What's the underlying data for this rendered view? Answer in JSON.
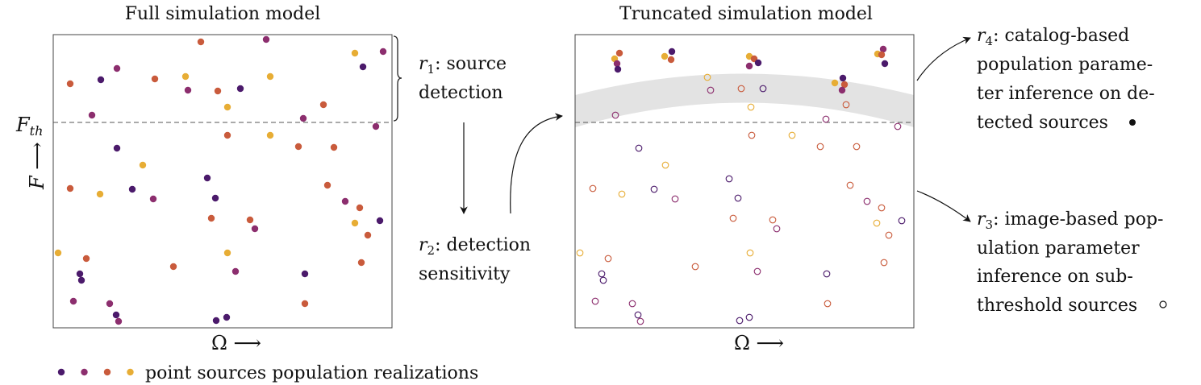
{
  "left_panel": {
    "title": "Full simulation model",
    "x_axis": "Ω ⟶",
    "y_axis_symbol": "F",
    "y_axis_arrow": " ⟶",
    "threshold_label_base": "F",
    "threshold_label_sub": "th"
  },
  "right_panel": {
    "title": "Truncated simulation model",
    "x_axis": "Ω ⟶"
  },
  "labels": {
    "r1": {
      "sym": "r",
      "sub": "1",
      "lines": [
        ": source",
        "detection"
      ]
    },
    "r2": {
      "sym": "r",
      "sub": "2",
      "lines": [
        ": detection",
        "sensitivity"
      ]
    },
    "r3": {
      "sym": "r",
      "sub": "3",
      "lines": [
        ": image-based pop-",
        "ulation parameter",
        "inference on sub-",
        "threshold sources"
      ]
    },
    "r4": {
      "sym": "r",
      "sub": "4",
      "lines": [
        ": catalog-based",
        "population parame-",
        "ter inference on de-",
        "tected sources"
      ]
    }
  },
  "legend": {
    "text": "point sources population realizations",
    "colors": [
      "#4b1a6b",
      "#8c2e6e",
      "#c95b3c",
      "#e7ad35"
    ]
  },
  "colors": {
    "purple": "#4b1a6b",
    "magenta": "#8c2e6e",
    "orange": "#c95b3c",
    "yellow": "#e7ad35",
    "band": "#e3e3e3"
  },
  "points_left": [
    {
      "x": 87,
      "y": 104,
      "c": "orange"
    },
    {
      "x": 125,
      "y": 99,
      "c": "purple"
    },
    {
      "x": 145,
      "y": 85,
      "c": "magenta"
    },
    {
      "x": 192,
      "y": 98,
      "c": "orange"
    },
    {
      "x": 230,
      "y": 95,
      "c": "yellow"
    },
    {
      "x": 233,
      "y": 112,
      "c": "magenta"
    },
    {
      "x": 249,
      "y": 52,
      "c": "orange"
    },
    {
      "x": 270,
      "y": 113,
      "c": "orange"
    },
    {
      "x": 282,
      "y": 133,
      "c": "yellow"
    },
    {
      "x": 298,
      "y": 110,
      "c": "purple"
    },
    {
      "x": 330,
      "y": 49,
      "c": "magenta"
    },
    {
      "x": 335,
      "y": 95,
      "c": "yellow"
    },
    {
      "x": 376,
      "y": 147,
      "c": "magenta"
    },
    {
      "x": 401,
      "y": 130,
      "c": "orange"
    },
    {
      "x": 440,
      "y": 66,
      "c": "yellow"
    },
    {
      "x": 450,
      "y": 83,
      "c": "purple"
    },
    {
      "x": 475,
      "y": 64,
      "c": "magenta"
    },
    {
      "x": 466,
      "y": 157,
      "c": "magenta"
    },
    {
      "x": 114,
      "y": 143,
      "c": "magenta"
    },
    {
      "x": 145,
      "y": 184,
      "c": "purple"
    },
    {
      "x": 177,
      "y": 205,
      "c": "yellow"
    },
    {
      "x": 87,
      "y": 234,
      "c": "orange"
    },
    {
      "x": 124,
      "y": 241,
      "c": "yellow"
    },
    {
      "x": 164,
      "y": 235,
      "c": "purple"
    },
    {
      "x": 190,
      "y": 247,
      "c": "magenta"
    },
    {
      "x": 257,
      "y": 221,
      "c": "purple"
    },
    {
      "x": 267,
      "y": 246,
      "c": "purple"
    },
    {
      "x": 282,
      "y": 168,
      "c": "orange"
    },
    {
      "x": 335,
      "y": 168,
      "c": "yellow"
    },
    {
      "x": 370,
      "y": 182,
      "c": "orange"
    },
    {
      "x": 414,
      "y": 183,
      "c": "orange"
    },
    {
      "x": 406,
      "y": 230,
      "c": "orange"
    },
    {
      "x": 428,
      "y": 250,
      "c": "magenta"
    },
    {
      "x": 446,
      "y": 258,
      "c": "orange"
    },
    {
      "x": 440,
      "y": 277,
      "c": "yellow"
    },
    {
      "x": 471,
      "y": 274,
      "c": "purple"
    },
    {
      "x": 456,
      "y": 292,
      "c": "orange"
    },
    {
      "x": 262,
      "y": 271,
      "c": "orange"
    },
    {
      "x": 310,
      "y": 273,
      "c": "orange"
    },
    {
      "x": 316,
      "y": 284,
      "c": "magenta"
    },
    {
      "x": 72,
      "y": 314,
      "c": "yellow"
    },
    {
      "x": 107,
      "y": 321,
      "c": "orange"
    },
    {
      "x": 99,
      "y": 340,
      "c": "purple"
    },
    {
      "x": 101,
      "y": 348,
      "c": "purple"
    },
    {
      "x": 215,
      "y": 331,
      "c": "orange"
    },
    {
      "x": 282,
      "y": 314,
      "c": "yellow"
    },
    {
      "x": 292,
      "y": 337,
      "c": "magenta"
    },
    {
      "x": 378,
      "y": 340,
      "c": "purple"
    },
    {
      "x": 448,
      "y": 326,
      "c": "orange"
    },
    {
      "x": 91,
      "y": 374,
      "c": "magenta"
    },
    {
      "x": 136,
      "y": 377,
      "c": "magenta"
    },
    {
      "x": 144,
      "y": 391,
      "c": "purple"
    },
    {
      "x": 147,
      "y": 399,
      "c": "magenta"
    },
    {
      "x": 268,
      "y": 398,
      "c": "purple"
    },
    {
      "x": 281,
      "y": 394,
      "c": "purple"
    },
    {
      "x": 378,
      "y": 377,
      "c": "orange"
    }
  ],
  "points_right_detected": [
    {
      "x": 762,
      "y": 73,
      "c": "yellow"
    },
    {
      "x": 768,
      "y": 66,
      "c": "orange"
    },
    {
      "x": 765,
      "y": 79,
      "c": "magenta"
    },
    {
      "x": 766,
      "y": 86,
      "c": "purple"
    },
    {
      "x": 824,
      "y": 70,
      "c": "yellow"
    },
    {
      "x": 833,
      "y": 64,
      "c": "purple"
    },
    {
      "x": 832,
      "y": 74,
      "c": "orange"
    },
    {
      "x": 929,
      "y": 70,
      "c": "yellow"
    },
    {
      "x": 935,
      "y": 73,
      "c": "orange"
    },
    {
      "x": 940,
      "y": 78,
      "c": "purple"
    },
    {
      "x": 929,
      "y": 82,
      "c": "magenta"
    },
    {
      "x": 1088,
      "y": 67,
      "c": "yellow"
    },
    {
      "x": 1095,
      "y": 61,
      "c": "magenta"
    },
    {
      "x": 1093,
      "y": 68,
      "c": "orange"
    },
    {
      "x": 1097,
      "y": 79,
      "c": "purple"
    },
    {
      "x": 1045,
      "y": 97,
      "c": "purple"
    },
    {
      "x": 1035,
      "y": 103,
      "c": "yellow"
    },
    {
      "x": 1047,
      "y": 105,
      "c": "orange"
    },
    {
      "x": 1044,
      "y": 112,
      "c": "magenta"
    }
  ],
  "points_right_sub": [
    {
      "x": 877,
      "y": 96,
      "c": "yellow"
    },
    {
      "x": 881,
      "y": 112,
      "c": "magenta"
    },
    {
      "x": 919,
      "y": 110,
      "c": "orange"
    },
    {
      "x": 946,
      "y": 110,
      "c": "purple"
    },
    {
      "x": 931,
      "y": 133,
      "c": "yellow"
    },
    {
      "x": 1049,
      "y": 130,
      "c": "orange"
    },
    {
      "x": 763,
      "y": 143,
      "c": "magenta"
    },
    {
      "x": 1024,
      "y": 148,
      "c": "magenta"
    },
    {
      "x": 1113,
      "y": 157,
      "c": "magenta"
    },
    {
      "x": 932,
      "y": 168,
      "c": "orange"
    },
    {
      "x": 982,
      "y": 168,
      "c": "yellow"
    },
    {
      "x": 1017,
      "y": 182,
      "c": "orange"
    },
    {
      "x": 1062,
      "y": 182,
      "c": "orange"
    },
    {
      "x": 792,
      "y": 184,
      "c": "purple"
    },
    {
      "x": 825,
      "y": 205,
      "c": "yellow"
    },
    {
      "x": 904,
      "y": 222,
      "c": "purple"
    },
    {
      "x": 735,
      "y": 234,
      "c": "orange"
    },
    {
      "x": 771,
      "y": 241,
      "c": "yellow"
    },
    {
      "x": 811,
      "y": 235,
      "c": "purple"
    },
    {
      "x": 837,
      "y": 247,
      "c": "magenta"
    },
    {
      "x": 915,
      "y": 246,
      "c": "purple"
    },
    {
      "x": 1054,
      "y": 230,
      "c": "orange"
    },
    {
      "x": 1075,
      "y": 250,
      "c": "magenta"
    },
    {
      "x": 1093,
      "y": 258,
      "c": "orange"
    },
    {
      "x": 909,
      "y": 271,
      "c": "orange"
    },
    {
      "x": 958,
      "y": 273,
      "c": "orange"
    },
    {
      "x": 963,
      "y": 284,
      "c": "magenta"
    },
    {
      "x": 1087,
      "y": 277,
      "c": "yellow"
    },
    {
      "x": 1118,
      "y": 274,
      "c": "purple"
    },
    {
      "x": 1102,
      "y": 292,
      "c": "orange"
    },
    {
      "x": 719,
      "y": 314,
      "c": "yellow"
    },
    {
      "x": 754,
      "y": 321,
      "c": "orange"
    },
    {
      "x": 930,
      "y": 314,
      "c": "yellow"
    },
    {
      "x": 1096,
      "y": 326,
      "c": "orange"
    },
    {
      "x": 862,
      "y": 331,
      "c": "orange"
    },
    {
      "x": 746,
      "y": 340,
      "c": "purple"
    },
    {
      "x": 748,
      "y": 348,
      "c": "purple"
    },
    {
      "x": 939,
      "y": 337,
      "c": "magenta"
    },
    {
      "x": 1025,
      "y": 340,
      "c": "purple"
    },
    {
      "x": 738,
      "y": 374,
      "c": "magenta"
    },
    {
      "x": 784,
      "y": 377,
      "c": "magenta"
    },
    {
      "x": 1026,
      "y": 377,
      "c": "orange"
    },
    {
      "x": 791,
      "y": 391,
      "c": "purple"
    },
    {
      "x": 794,
      "y": 399,
      "c": "magenta"
    },
    {
      "x": 917,
      "y": 398,
      "c": "purple"
    },
    {
      "x": 929,
      "y": 394,
      "c": "purple"
    }
  ]
}
